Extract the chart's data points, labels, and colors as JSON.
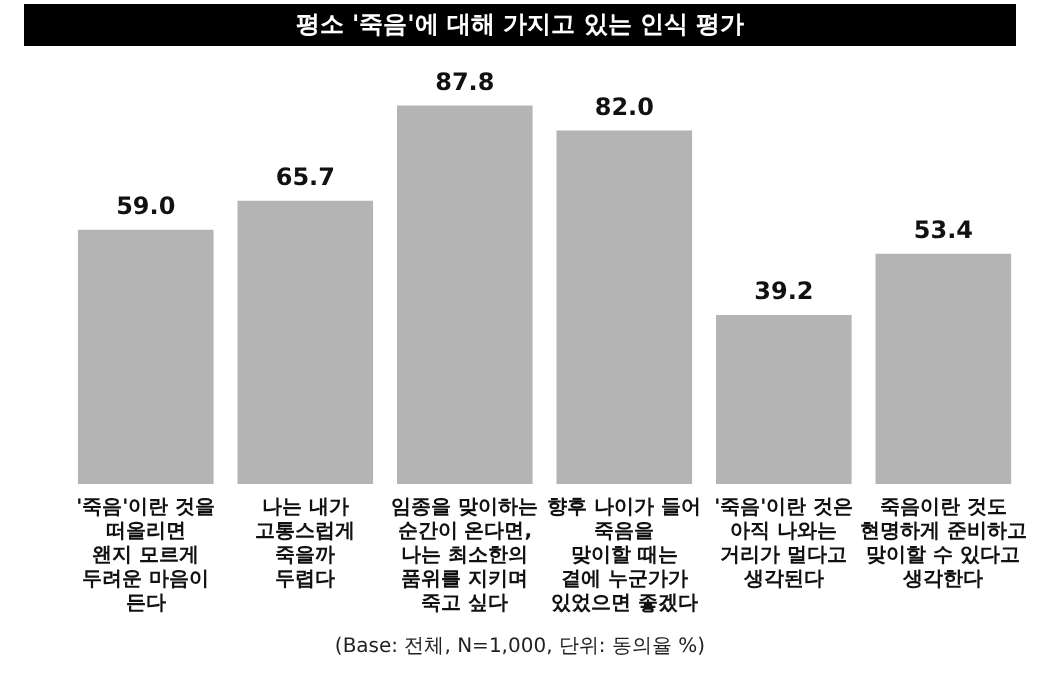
{
  "chart_data": {
    "type": "bar",
    "title": "평소 '죽음'에 대해 가지고 있는 인식 평가",
    "categories": [
      "'죽음'이란 것을\n떠올리면\n왠지 모르게\n두려운 마음이\n든다",
      "나는 내가\n고통스럽게\n죽을까\n두렵다",
      "임종을 맞이하는\n순간이 온다면,\n나는 최소한의\n품위를 지키며\n죽고 싶다",
      "향후 나이가 들어\n죽음을\n맞이할 때는\n곁에 누군가가\n있었으면 좋겠다",
      "'죽음'이란 것은\n아직 나와는\n거리가 멀다고\n생각된다",
      "죽음이란 것도\n현명하게 준비하고\n맞이할 수 있다고\n생각한다"
    ],
    "values": [
      59.0,
      65.7,
      87.8,
      82.0,
      39.2,
      53.4
    ],
    "value_labels": [
      "59.0",
      "65.7",
      "87.8",
      "82.0",
      "39.2",
      "53.4"
    ],
    "color": "#b4b4b4",
    "annotations": [
      "(Base: 전체, N=1,000, 단위: 동의율 %)"
    ],
    "grid": false,
    "legend": false
  }
}
